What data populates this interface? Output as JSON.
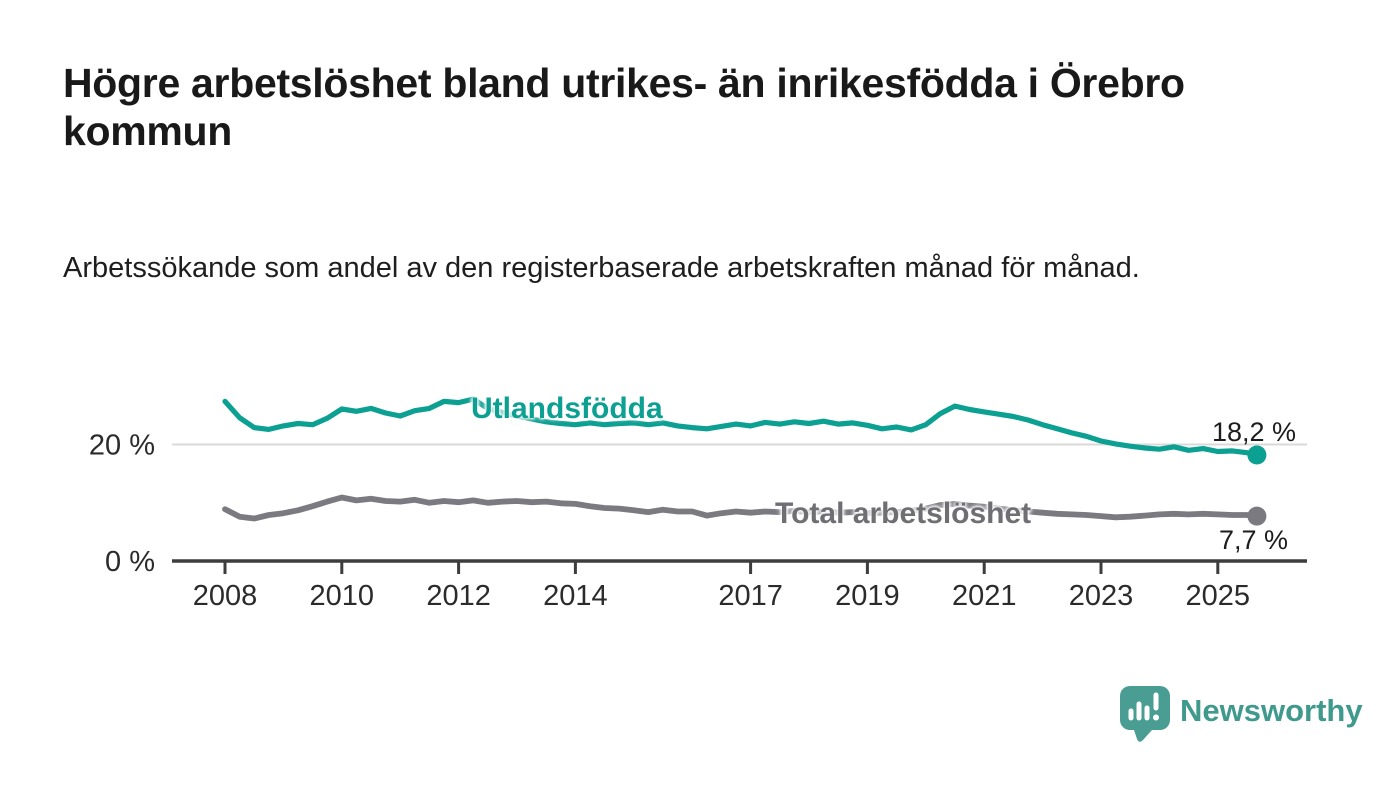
{
  "header": {
    "title": "Högre arbetslöshet bland utrikes- än inrikesfödda i Örebro kommun",
    "subtitle": "Arbetssökande som andel av den registerbaserade arbetskraften månad för månad."
  },
  "footer": {
    "brand": "Newsworthy",
    "brand_color": "#3f998c",
    "logo_icon": "speech-bubble-bar-chart-exclamation"
  },
  "chart_data": {
    "type": "line",
    "title": "Högre arbetslöshet bland utrikes- än inrikesfödda i Örebro kommun",
    "subtitle": "Arbetssökande som andel av den registerbaserade arbetskraften månad för månad.",
    "unit": "%",
    "grid": "single horizontal gridline at 20 %",
    "legend_position": "inline labels on lines",
    "axis_color": "#3d3d3d",
    "grid_color": "#d9d9d9",
    "tick_label_color": "#2b2b2b",
    "xlim": [
      2007.1,
      2026.5
    ],
    "ylim": [
      0,
      29
    ],
    "y_ticks": [
      {
        "value": 20,
        "label": "20 %"
      },
      {
        "value": 0,
        "label": "0 %"
      }
    ],
    "x_ticks": [
      {
        "year": 2008,
        "label": "2008"
      },
      {
        "year": 2010,
        "label": "2010"
      },
      {
        "year": 2012,
        "label": "2012"
      },
      {
        "year": 2014,
        "label": "2014"
      },
      {
        "year": 2017,
        "label": "2017"
      },
      {
        "year": 2019,
        "label": "2019"
      },
      {
        "year": 2021,
        "label": "2021"
      },
      {
        "year": 2023,
        "label": "2023"
      },
      {
        "year": 2025,
        "label": "2025"
      }
    ],
    "x": [
      2008,
      2008.25,
      2008.5,
      2008.75,
      2009,
      2009.25,
      2009.5,
      2009.75,
      2010,
      2010.25,
      2010.5,
      2010.75,
      2011,
      2011.25,
      2011.5,
      2011.75,
      2012,
      2012.25,
      2012.5,
      2012.75,
      2013,
      2013.25,
      2013.5,
      2013.75,
      2014,
      2014.25,
      2014.5,
      2014.75,
      2015,
      2015.25,
      2015.5,
      2015.75,
      2016,
      2016.25,
      2016.5,
      2016.75,
      2017,
      2017.25,
      2017.5,
      2017.75,
      2018,
      2018.25,
      2018.5,
      2018.75,
      2019,
      2019.25,
      2019.5,
      2019.75,
      2020,
      2020.25,
      2020.5,
      2020.75,
      2021,
      2021.25,
      2021.5,
      2021.75,
      2022,
      2022.25,
      2022.5,
      2022.75,
      2023,
      2023.25,
      2023.5,
      2023.75,
      2024,
      2024.25,
      2024.5,
      2024.75,
      2025,
      2025.25,
      2025.5,
      2025.67
    ],
    "series": [
      {
        "name": "Utlandsfödda",
        "color": "#0ca092",
        "line_width": 5.2,
        "end_label": "18,2 %",
        "end_value": 18.2,
        "values": [
          27.4,
          24.6,
          22.9,
          22.6,
          23.2,
          23.6,
          23.4,
          24.5,
          26.1,
          25.7,
          26.2,
          25.4,
          24.9,
          25.8,
          26.2,
          27.4,
          27.2,
          27.8,
          26.2,
          25.5,
          24.9,
          24.4,
          23.9,
          23.6,
          23.4,
          23.7,
          23.4,
          23.6,
          23.7,
          23.4,
          23.7,
          23.2,
          22.9,
          22.7,
          23.1,
          23.5,
          23.2,
          23.8,
          23.5,
          23.9,
          23.6,
          24.0,
          23.5,
          23.7,
          23.3,
          22.7,
          23.0,
          22.5,
          23.4,
          25.3,
          26.6,
          26.0,
          25.6,
          25.2,
          24.8,
          24.2,
          23.4,
          22.7,
          22.0,
          21.4,
          20.6,
          20.1,
          19.7,
          19.4,
          19.2,
          19.6,
          19.0,
          19.3,
          18.8,
          18.9,
          18.6,
          18.2
        ]
      },
      {
        "name": "Total arbetslöshet",
        "color": "#7a7a80",
        "line_width": 5.8,
        "end_label": "7,7 %",
        "end_value": 7.7,
        "values": [
          8.9,
          7.6,
          7.3,
          7.9,
          8.2,
          8.7,
          9.4,
          10.2,
          10.9,
          10.4,
          10.7,
          10.3,
          10.2,
          10.5,
          10.0,
          10.3,
          10.1,
          10.4,
          10.0,
          10.2,
          10.3,
          10.1,
          10.2,
          9.9,
          9.8,
          9.4,
          9.1,
          9.0,
          8.7,
          8.4,
          8.8,
          8.5,
          8.5,
          7.8,
          8.2,
          8.5,
          8.3,
          8.5,
          8.4,
          8.6,
          8.4,
          8.5,
          8.3,
          8.4,
          8.2,
          8.3,
          8.4,
          8.6,
          9.0,
          9.6,
          9.8,
          9.5,
          9.3,
          9.0,
          8.7,
          8.5,
          8.3,
          8.1,
          8.0,
          7.9,
          7.7,
          7.5,
          7.6,
          7.8,
          8.0,
          8.1,
          8.0,
          8.1,
          8.0,
          7.9,
          7.9,
          7.7
        ]
      }
    ]
  }
}
